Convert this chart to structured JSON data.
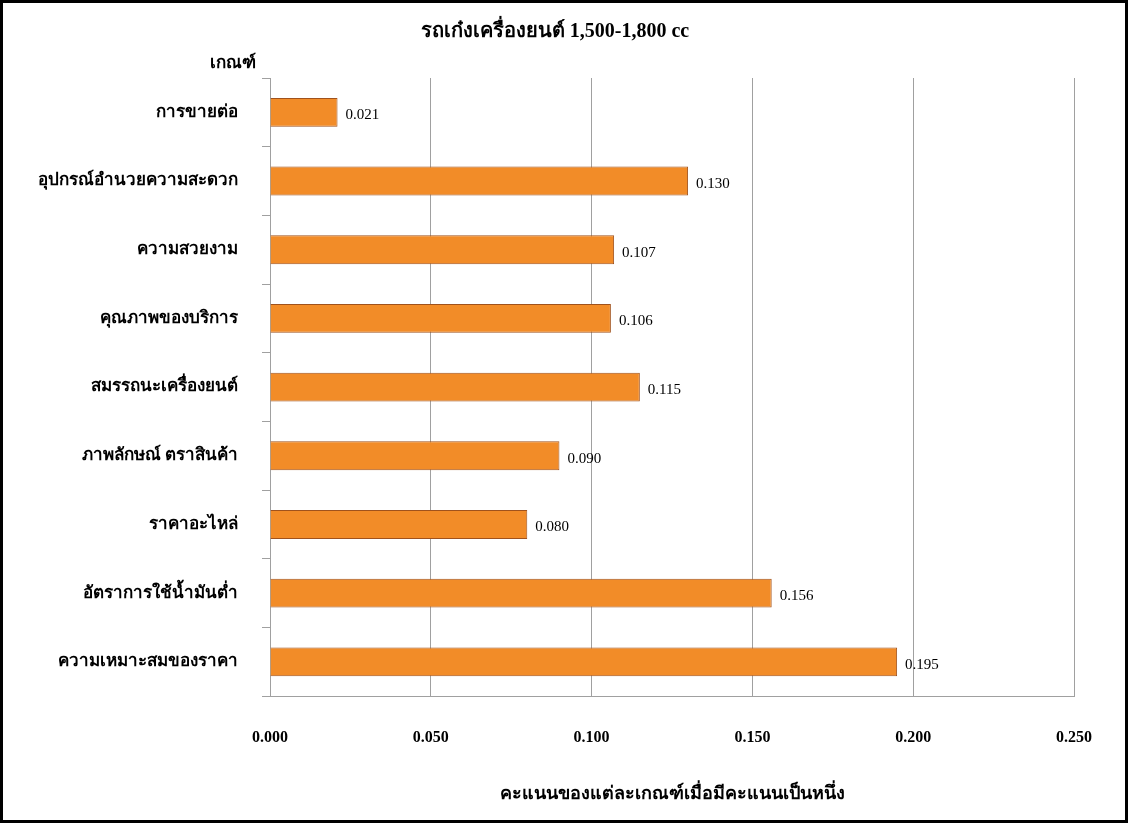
{
  "chart_data": {
    "type": "bar",
    "orientation": "horizontal",
    "title": "รถเก๋งเครื่องยนต์ 1,500-1,800 cc",
    "ylabel": "เกณฑ์",
    "xlabel": "คะแนนของแต่ละเกณฑ์เมื่อมีคะแนนเป็นหนึ่ง",
    "categories": [
      "การขายต่อ",
      "อุปกรณ์อำนวยความสะดวก",
      "ความสวยงาม",
      "คุณภาพของบริการ",
      "สมรรถนะเครื่องยนต์",
      "ภาพลักษณ์ ตราสินค้า",
      "ราคาอะไหล่",
      "อัตราการใช้น้ำมันต่ำ",
      "ความเหมาะสมของราคา"
    ],
    "values": [
      0.021,
      0.13,
      0.107,
      0.106,
      0.115,
      0.09,
      0.08,
      0.156,
      0.195
    ],
    "color": "#f28c28",
    "xlim": [
      0,
      0.25
    ],
    "xticks": [
      {
        "value": 0,
        "label": "0.000"
      },
      {
        "value": 0.05,
        "label": "0.050"
      },
      {
        "value": 0.1,
        "label": "0.100"
      },
      {
        "value": 0.15,
        "label": "0.150"
      },
      {
        "value": 0.2,
        "label": "0.200"
      },
      {
        "value": 0.25,
        "label": "0.250"
      }
    ],
    "value_labels": [
      "0.021",
      "0.130",
      "0.107",
      "0.106",
      "0.115",
      "0.090",
      "0.080",
      "0.156",
      "0.195"
    ],
    "grid": "x",
    "legend": false
  }
}
